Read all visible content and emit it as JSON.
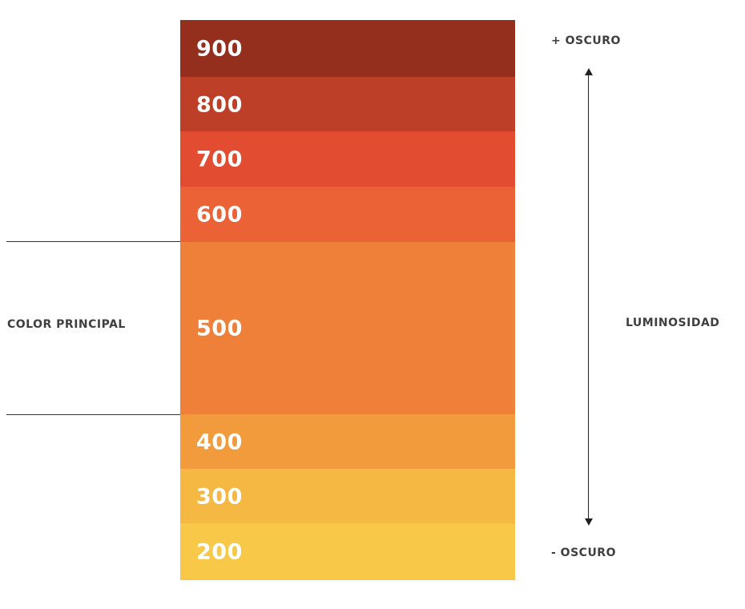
{
  "palette": {
    "swatches": [
      {
        "label": "900",
        "color": "#952f1d"
      },
      {
        "label": "800",
        "color": "#bd3f28"
      },
      {
        "label": "700",
        "color": "#e24d31"
      },
      {
        "label": "600",
        "color": "#ec6237"
      },
      {
        "label": "500",
        "color": "#ef803a"
      },
      {
        "label": "400",
        "color": "#f29b3c"
      },
      {
        "label": "300",
        "color": "#f5b842"
      },
      {
        "label": "200",
        "color": "#f8c848"
      }
    ]
  },
  "labels": {
    "principal": "COLOR PRINCIPAL",
    "top": "+ OSCURO",
    "bottom": "- OSCURO",
    "axis": "LUMINOSIDAD"
  }
}
